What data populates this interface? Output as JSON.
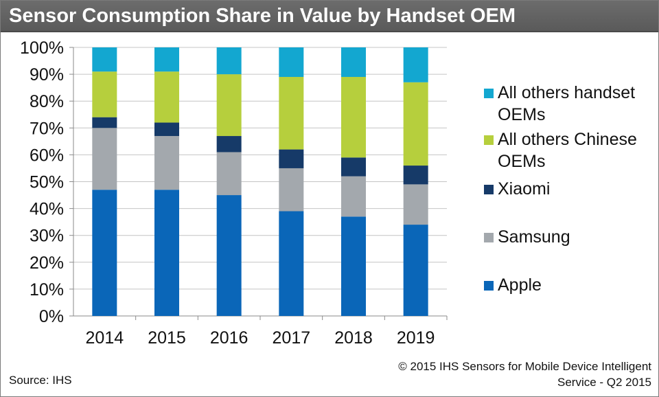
{
  "title": "Sensor Consumption Share in Value by Handset OEM",
  "chart_data": {
    "type": "bar",
    "stacked": true,
    "title": "Sensor Consumption Share in Value by Handset OEM",
    "xlabel": "",
    "ylabel": "",
    "ylim": [
      0,
      100
    ],
    "y_ticks": [
      "0%",
      "10%",
      "20%",
      "30%",
      "40%",
      "50%",
      "60%",
      "70%",
      "80%",
      "90%",
      "100%"
    ],
    "categories": [
      "2014",
      "2015",
      "2016",
      "2017",
      "2018",
      "2019"
    ],
    "series": [
      {
        "name": "Apple",
        "color": "#0a66b8",
        "values": [
          47,
          47,
          45,
          39,
          37,
          34
        ]
      },
      {
        "name": "Samsung",
        "color": "#a3a8ad",
        "values": [
          23,
          20,
          16,
          16,
          15,
          15
        ]
      },
      {
        "name": "Xiaomi",
        "color": "#163a68",
        "values": [
          4,
          5,
          6,
          7,
          7,
          7
        ]
      },
      {
        "name": "All others Chinese\nOEMs",
        "color": "#b6cf3d",
        "values": [
          17,
          19,
          23,
          27,
          30,
          31
        ]
      },
      {
        "name": "All others handset\nOEMs",
        "color": "#13a7d0",
        "values": [
          9,
          9,
          10,
          11,
          11,
          13
        ]
      }
    ],
    "legend_position": "right"
  },
  "legend": [
    {
      "label": "All others handset\nOEMs",
      "color": "#13a7d0"
    },
    {
      "label": "All others Chinese\nOEMs",
      "color": "#b6cf3d"
    },
    {
      "label": "Xiaomi",
      "color": "#163a68"
    },
    {
      "label": "Samsung",
      "color": "#a3a8ad"
    },
    {
      "label": "Apple",
      "color": "#0a66b8"
    }
  ],
  "footer": {
    "source": "Source: IHS",
    "copyright_line1": "© 2015 IHS   Sensors for Mobile Device Intelligent",
    "copyright_line2": "Service - Q2 2015"
  }
}
